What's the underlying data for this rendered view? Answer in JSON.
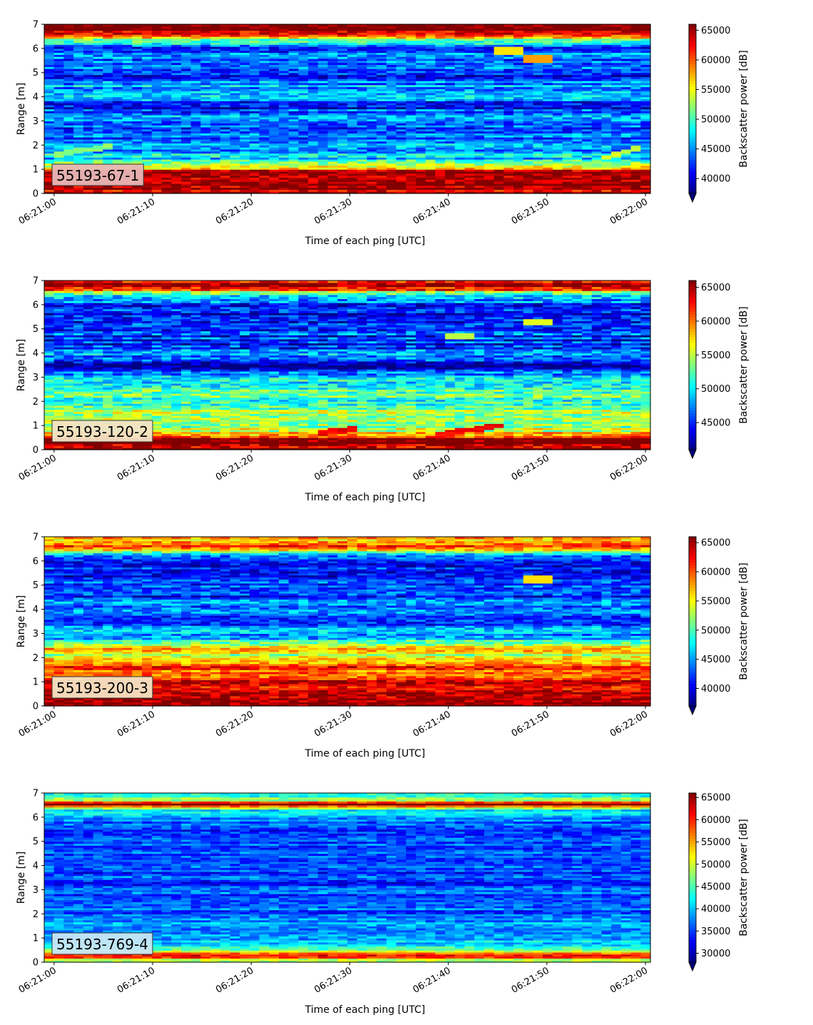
{
  "chart_data": [
    {
      "type": "heatmap",
      "label": "55193-67-1",
      "xlabel": "Time of each ping [UTC]",
      "ylabel": "Range [m]",
      "xticks": [
        "06:21:00",
        "06:21:10",
        "06:21:20",
        "06:21:30",
        "06:21:40",
        "06:21:50",
        "06:22:00"
      ],
      "xlim": [
        "06:21:00",
        "06:22:00"
      ],
      "yticks": [
        0,
        1,
        2,
        3,
        4,
        5,
        6,
        7
      ],
      "ylim": [
        0,
        7
      ],
      "colorbar": {
        "label": "Backscatter power [dB]",
        "ticks": [
          40000,
          45000,
          50000,
          55000,
          60000,
          65000
        ],
        "min": 37500,
        "max": 66000,
        "extend": "min"
      },
      "profile": [
        {
          "range": 0.15,
          "value": 64000
        },
        {
          "range": 0.5,
          "value": 66000
        },
        {
          "range": 0.9,
          "value": 65000
        },
        {
          "range": 1.2,
          "value": 52000
        },
        {
          "range": 1.5,
          "value": 47000
        },
        {
          "range": 2.0,
          "value": 45000
        },
        {
          "range": 2.5,
          "value": 43000
        },
        {
          "range": 2.85,
          "value": 44000
        },
        {
          "range": 3.2,
          "value": 46000
        },
        {
          "range": 3.6,
          "value": 41000
        },
        {
          "range": 4.2,
          "value": 47000
        },
        {
          "range": 4.6,
          "value": 44000
        },
        {
          "range": 5.0,
          "value": 42000
        },
        {
          "range": 5.3,
          "value": 46000
        },
        {
          "range": 5.7,
          "value": 44000
        },
        {
          "range": 6.0,
          "value": 42000
        },
        {
          "range": 6.35,
          "value": 52000
        },
        {
          "range": 6.6,
          "value": 62000
        },
        {
          "range": 6.85,
          "value": 66000
        }
      ],
      "features": [
        {
          "type": "rising-band",
          "from": [
            0,
            1.6
          ],
          "to": [
            6,
            2.0
          ],
          "value": 52000
        },
        {
          "type": "rising-band",
          "from": [
            56,
            1.5
          ],
          "to": [
            60,
            2.0
          ],
          "value": 54000
        },
        {
          "type": "spot",
          "t": 46,
          "range": 5.9,
          "value": 56000
        },
        {
          "type": "spot",
          "t": 49,
          "range": 5.6,
          "value": 58000
        }
      ]
    },
    {
      "type": "heatmap",
      "label": "55193-120-2",
      "xlabel": "Time of each ping [UTC]",
      "ylabel": "Range [m]",
      "xticks": [
        "06:21:00",
        "06:21:10",
        "06:21:20",
        "06:21:30",
        "06:21:40",
        "06:21:50",
        "06:22:00"
      ],
      "xlim": [
        "06:21:00",
        "06:22:00"
      ],
      "yticks": [
        0,
        1,
        2,
        3,
        4,
        5,
        6,
        7
      ],
      "ylim": [
        0,
        7
      ],
      "colorbar": {
        "label": "Backscatter power [dB]",
        "ticks": [
          45000,
          50000,
          55000,
          60000,
          65000
        ],
        "min": 41000,
        "max": 66000,
        "extend": "min"
      },
      "profile": [
        {
          "range": 0.15,
          "value": 66000
        },
        {
          "range": 0.45,
          "value": 66000
        },
        {
          "range": 0.75,
          "value": 57000
        },
        {
          "range": 1.1,
          "value": 52000
        },
        {
          "range": 1.5,
          "value": 54000
        },
        {
          "range": 1.9,
          "value": 51000
        },
        {
          "range": 2.3,
          "value": 53000
        },
        {
          "range": 2.7,
          "value": 50000
        },
        {
          "range": 3.1,
          "value": 48000
        },
        {
          "range": 3.5,
          "value": 42000
        },
        {
          "range": 4.0,
          "value": 47000
        },
        {
          "range": 4.5,
          "value": 45000
        },
        {
          "range": 5.0,
          "value": 46000
        },
        {
          "range": 5.5,
          "value": 45000
        },
        {
          "range": 5.9,
          "value": 43000
        },
        {
          "range": 6.2,
          "value": 48000
        },
        {
          "range": 6.5,
          "value": 53000
        },
        {
          "range": 6.75,
          "value": 66000
        },
        {
          "range": 6.95,
          "value": 62000
        }
      ],
      "features": [
        {
          "type": "rising-band",
          "from": [
            27,
            0.7
          ],
          "to": [
            31,
            0.9
          ],
          "value": 63000
        },
        {
          "type": "rising-band",
          "from": [
            39,
            0.65
          ],
          "to": [
            46,
            1.05
          ],
          "value": 63000
        },
        {
          "type": "spot",
          "t": 41,
          "range": 4.7,
          "value": 55000
        },
        {
          "type": "spot",
          "t": 49,
          "range": 5.3,
          "value": 56000
        }
      ]
    },
    {
      "type": "heatmap",
      "label": "55193-200-3",
      "xlabel": "Time of each ping [UTC]",
      "ylabel": "Range [m]",
      "xticks": [
        "06:21:00",
        "06:21:10",
        "06:21:20",
        "06:21:30",
        "06:21:40",
        "06:21:50",
        "06:22:00"
      ],
      "xlim": [
        "06:21:00",
        "06:22:00"
      ],
      "yticks": [
        0,
        1,
        2,
        3,
        4,
        5,
        6,
        7
      ],
      "ylim": [
        0,
        7
      ],
      "colorbar": {
        "label": "Backscatter power [dB]",
        "ticks": [
          40000,
          45000,
          50000,
          55000,
          60000,
          65000
        ],
        "min": 37000,
        "max": 66000,
        "extend": "min"
      },
      "profile": [
        {
          "range": 0.15,
          "value": 64000
        },
        {
          "range": 0.4,
          "value": 66000
        },
        {
          "range": 0.7,
          "value": 60000
        },
        {
          "range": 1.0,
          "value": 64000
        },
        {
          "range": 1.3,
          "value": 61000
        },
        {
          "range": 1.7,
          "value": 60000
        },
        {
          "range": 2.1,
          "value": 53000
        },
        {
          "range": 2.4,
          "value": 56000
        },
        {
          "range": 2.8,
          "value": 46000
        },
        {
          "range": 3.2,
          "value": 44000
        },
        {
          "range": 3.6,
          "value": 41000
        },
        {
          "range": 4.1,
          "value": 44000
        },
        {
          "range": 4.6,
          "value": 42000
        },
        {
          "range": 5.1,
          "value": 43000
        },
        {
          "range": 5.6,
          "value": 42000
        },
        {
          "range": 6.0,
          "value": 41000
        },
        {
          "range": 6.3,
          "value": 48000
        },
        {
          "range": 6.6,
          "value": 63000
        },
        {
          "range": 6.85,
          "value": 58000
        }
      ],
      "features": [
        {
          "type": "spot",
          "t": 49,
          "range": 5.25,
          "value": 56000
        }
      ]
    },
    {
      "type": "heatmap",
      "label": "55193-769-4",
      "xlabel": "Time of each ping [UTC]",
      "ylabel": "Range [m]",
      "xticks": [
        "06:21:00",
        "06:21:10",
        "06:21:20",
        "06:21:30",
        "06:21:40",
        "06:21:50",
        "06:22:00"
      ],
      "xlim": [
        "06:21:00",
        "06:22:00"
      ],
      "yticks": [
        0,
        1,
        2,
        3,
        4,
        5,
        6,
        7
      ],
      "ylim": [
        0,
        7
      ],
      "colorbar": {
        "label": "Backscatter power [dB]",
        "ticks": [
          30000,
          35000,
          40000,
          45000,
          50000,
          55000,
          60000,
          65000
        ],
        "min": 28000,
        "max": 66000,
        "extend": "min"
      },
      "profile": [
        {
          "range": 0.1,
          "value": 47000
        },
        {
          "range": 0.28,
          "value": 64000
        },
        {
          "range": 0.5,
          "value": 45000
        },
        {
          "range": 0.8,
          "value": 41000
        },
        {
          "range": 1.2,
          "value": 39000
        },
        {
          "range": 1.8,
          "value": 37000
        },
        {
          "range": 2.5,
          "value": 36000
        },
        {
          "range": 3.2,
          "value": 35000
        },
        {
          "range": 4.0,
          "value": 35000
        },
        {
          "range": 4.8,
          "value": 35000
        },
        {
          "range": 5.5,
          "value": 35000
        },
        {
          "range": 6.0,
          "value": 38000
        },
        {
          "range": 6.3,
          "value": 42000
        },
        {
          "range": 6.55,
          "value": 66000
        },
        {
          "range": 6.75,
          "value": 46000
        },
        {
          "range": 6.95,
          "value": 43000
        }
      ],
      "features": []
    }
  ]
}
